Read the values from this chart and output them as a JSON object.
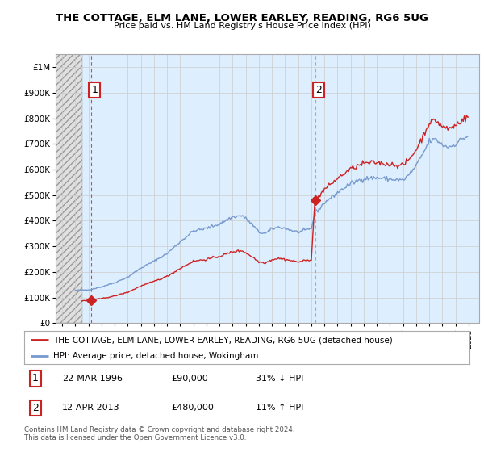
{
  "title": "THE COTTAGE, ELM LANE, LOWER EARLEY, READING, RG6 5UG",
  "subtitle": "Price paid vs. HM Land Registry's House Price Index (HPI)",
  "ylabel_ticks": [
    "£0",
    "£100K",
    "£200K",
    "£300K",
    "£400K",
    "£500K",
    "£600K",
    "£700K",
    "£800K",
    "£900K",
    "£1M"
  ],
  "ytick_values": [
    0,
    100000,
    200000,
    300000,
    400000,
    500000,
    600000,
    700000,
    800000,
    900000,
    1000000
  ],
  "ylim": [
    0,
    1050000
  ],
  "xlim_start": 1993.5,
  "xlim_end": 2025.8,
  "hatch_end": 1995.5,
  "transaction1_x": 1996.22,
  "transaction1_y": 90000,
  "transaction1_label": "1",
  "transaction1_date": "22-MAR-1996",
  "transaction1_price": "£90,000",
  "transaction1_hpi": "31% ↓ HPI",
  "transaction2_x": 2013.28,
  "transaction2_y": 480000,
  "transaction2_label": "2",
  "transaction2_date": "12-APR-2013",
  "transaction2_price": "£480,000",
  "transaction2_hpi": "11% ↑ HPI",
  "hpi_line_color": "#7799cc",
  "price_line_color": "#cc2222",
  "dot_color": "#cc2222",
  "dashed1_color": "#dd4444",
  "dashed2_color": "#aaaaaa",
  "background_color": "#ffffff",
  "plot_bg_color": "#ddeeff",
  "grid_color": "#cccccc",
  "hatch_bg_color": "#e0e0e0",
  "legend_label1": "THE COTTAGE, ELM LANE, LOWER EARLEY, READING, RG6 5UG (detached house)",
  "legend_label2": "HPI: Average price, detached house, Wokingham",
  "footer": "Contains HM Land Registry data © Crown copyright and database right 2024.\nThis data is licensed under the Open Government Licence v3.0.",
  "xtick_years": [
    1994,
    1995,
    1996,
    1997,
    1998,
    1999,
    2000,
    2001,
    2002,
    2003,
    2004,
    2005,
    2006,
    2007,
    2008,
    2009,
    2010,
    2011,
    2012,
    2013,
    2014,
    2015,
    2016,
    2017,
    2018,
    2019,
    2020,
    2021,
    2022,
    2023,
    2024,
    2025
  ]
}
